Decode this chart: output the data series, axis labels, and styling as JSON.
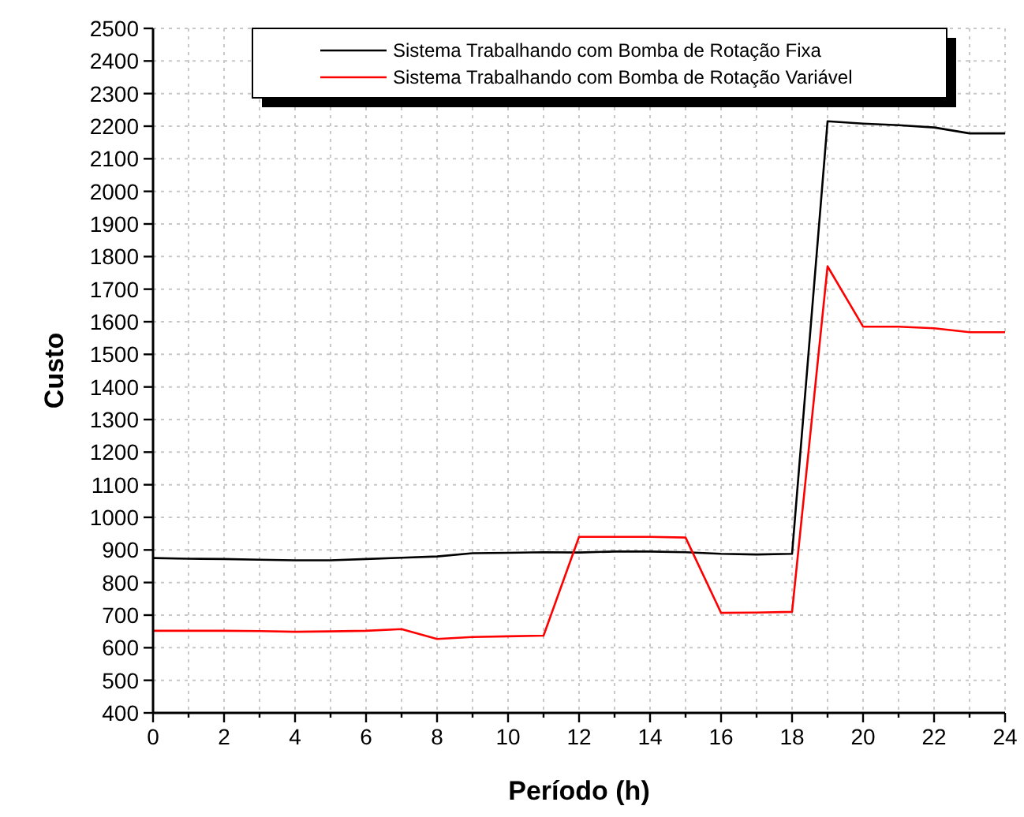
{
  "chart_data": {
    "type": "line",
    "xlabel": "Período (h)",
    "ylabel": "Custo",
    "x": [
      0,
      1,
      2,
      3,
      4,
      5,
      6,
      7,
      8,
      9,
      10,
      11,
      12,
      13,
      14,
      15,
      16,
      17,
      18,
      19,
      20,
      21,
      22,
      23,
      24
    ],
    "series": [
      {
        "name": "Sistema Trabalhando com Bomba de Rotação Fixa",
        "color": "#000000",
        "values": [
          875,
          873,
          872,
          870,
          868,
          868,
          872,
          876,
          880,
          890,
          891,
          893,
          892,
          895,
          895,
          893,
          888,
          886,
          888,
          2215,
          2208,
          2203,
          2196,
          2178,
          2178
        ]
      },
      {
        "name": "Sistema Trabalhando com Bomba de Rotação Variável",
        "color": "#ff0000",
        "values": [
          652,
          652,
          652,
          651,
          649,
          650,
          652,
          657,
          627,
          633,
          635,
          637,
          940,
          940,
          940,
          938,
          707,
          708,
          710,
          1770,
          1585,
          1585,
          1580,
          1568,
          1568
        ]
      }
    ],
    "xlim": [
      0,
      24
    ],
    "xticks": [
      0,
      {
        "value": 1,
        "label": null
      },
      2,
      {
        "value": 3,
        "label": null
      },
      4,
      {
        "value": 5,
        "label": null
      },
      6,
      {
        "value": 7,
        "label": null
      },
      8,
      {
        "value": 9,
        "label": null
      },
      10,
      {
        "value": 11,
        "label": null
      },
      12,
      {
        "value": 13,
        "label": null
      },
      14,
      {
        "value": 15,
        "label": null
      },
      16,
      {
        "value": 17,
        "label": null
      },
      18,
      {
        "value": 19,
        "label": null
      },
      20,
      {
        "value": 21,
        "label": null
      },
      22,
      {
        "value": 23,
        "label": null
      },
      24
    ],
    "ylim": [
      400,
      2500
    ],
    "yticks": [
      400,
      500,
      600,
      700,
      800,
      900,
      1000,
      1100,
      1200,
      1300,
      1400,
      1500,
      1600,
      1700,
      1800,
      1900,
      2000,
      2100,
      2200,
      2300,
      2400,
      2500
    ],
    "grid": true,
    "legend": "top",
    "marker": "none",
    "line_style": "solid"
  }
}
